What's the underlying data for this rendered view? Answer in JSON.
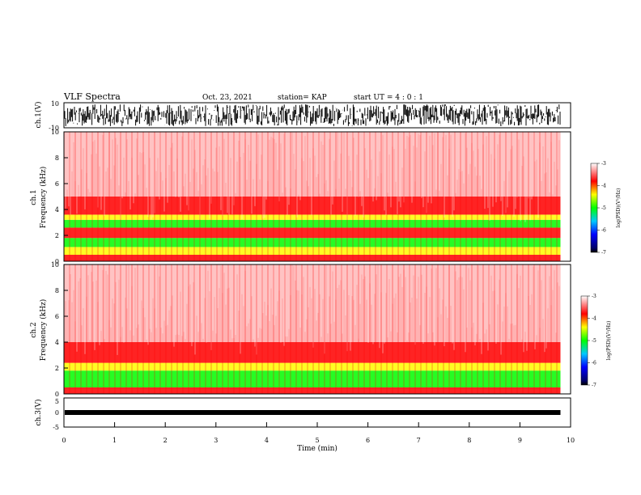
{
  "header": {
    "title": "VLF Spectra",
    "date": "Oct. 23, 2021",
    "station": "station= KAP",
    "start": "start UT =  4 : 0 : 1"
  },
  "colors": {
    "spec_high": "#ff0000",
    "spec_mid": "#ffff00",
    "spec_low": "#00ff00",
    "waveform": "#000000"
  },
  "chart_data": [
    {
      "type": "line",
      "name": "ch1-waveform",
      "ylabel": "ch.1(V)",
      "ylim": [
        -10,
        10
      ],
      "yticks": [
        "10",
        "-10"
      ],
      "xlim": [
        0,
        10
      ]
    },
    {
      "type": "heatmap",
      "name": "ch1-spectrogram",
      "ylabel_top": "ch.1",
      "ylabel": "Frequency (kHz)",
      "ylim": [
        0,
        10
      ],
      "yticks": [
        "10",
        "8",
        "6",
        "4",
        "2",
        "0"
      ],
      "xlim": [
        0,
        10
      ],
      "data_extent_min": 9.8,
      "colorbar": {
        "label": "log(PSD)(V²/Hz)",
        "range": [
          -7,
          -3
        ],
        "ticks": [
          "-3",
          "-4",
          "-5",
          "-6",
          "-7"
        ]
      },
      "bands": [
        {
          "f0": 0.0,
          "f1": 0.5,
          "level": "high"
        },
        {
          "f0": 0.5,
          "f1": 1.1,
          "level": "mid"
        },
        {
          "f0": 1.1,
          "f1": 1.8,
          "level": "low"
        },
        {
          "f0": 1.8,
          "f1": 2.6,
          "level": "high"
        },
        {
          "f0": 2.6,
          "f1": 3.2,
          "level": "low"
        },
        {
          "f0": 3.2,
          "f1": 3.6,
          "level": "mid"
        },
        {
          "f0": 3.6,
          "f1": 5.0,
          "level": "high"
        },
        {
          "f0": 5.0,
          "f1": 10.0,
          "level": "faint"
        }
      ]
    },
    {
      "type": "heatmap",
      "name": "ch2-spectrogram",
      "ylabel_top": "ch.2",
      "ylabel": "Frequency (kHz)",
      "ylim": [
        0,
        10
      ],
      "yticks": [
        "10",
        "8",
        "6",
        "4",
        "2",
        "0"
      ],
      "xlim": [
        0,
        10
      ],
      "data_extent_min": 9.8,
      "colorbar": {
        "label": "log(PSD)(V²/Hz)",
        "range": [
          -7,
          -3
        ],
        "ticks": [
          "-3",
          "-4",
          "-5",
          "-6",
          "-7"
        ]
      },
      "bands": [
        {
          "f0": 0.0,
          "f1": 0.5,
          "level": "high"
        },
        {
          "f0": 0.5,
          "f1": 1.8,
          "level": "low"
        },
        {
          "f0": 1.8,
          "f1": 2.4,
          "level": "mid"
        },
        {
          "f0": 2.4,
          "f1": 4.0,
          "level": "high"
        },
        {
          "f0": 4.0,
          "f1": 10.0,
          "level": "faint"
        }
      ]
    },
    {
      "type": "line",
      "name": "ch3-waveform",
      "ylabel": "ch.3(V)",
      "ylim": [
        -5,
        5
      ],
      "yticks": [
        "5",
        "0",
        "-5"
      ],
      "xlim": [
        0,
        10
      ],
      "xlabel": "Time (min)",
      "xticks": [
        "0",
        "1",
        "2",
        "3",
        "4",
        "5",
        "6",
        "7",
        "8",
        "9",
        "10"
      ]
    }
  ]
}
